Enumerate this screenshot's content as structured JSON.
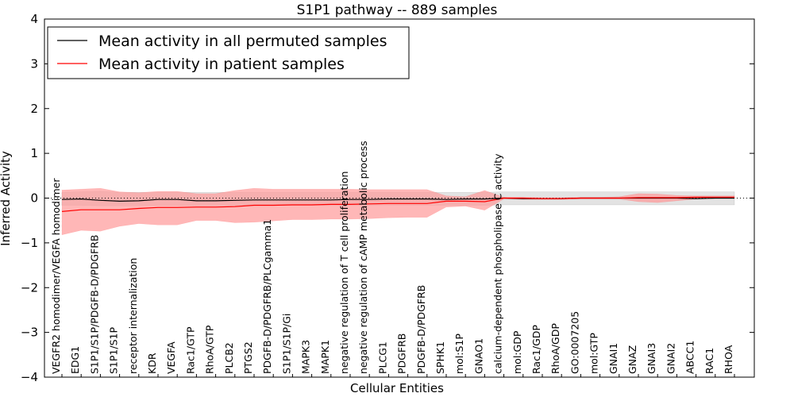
{
  "chart_data": {
    "type": "line",
    "title": "S1P1 pathway -- 889 samples",
    "xlabel": "Cellular Entities",
    "ylabel": "Inferred Activity",
    "ylim": [
      -4,
      4
    ],
    "yticks": [
      4,
      3,
      2,
      1,
      0,
      -1,
      -2,
      -3,
      -4
    ],
    "ytick_labels": [
      "4",
      "3",
      "2",
      "1",
      "0",
      "−1",
      "−2",
      "−3",
      "−4"
    ],
    "reference_line": 0,
    "grid": false,
    "legend_position": "top-left",
    "categories": [
      "VEGFR2 homodimer/VEGFA homodimer",
      "EDG1",
      "S1P1/S1P/PDGFB-D/PDGFRB",
      "S1P1/S1P",
      "receptor internalization",
      "KDR",
      "VEGFA",
      "Rac1/GTP",
      "RhoA/GTP",
      "PLCB2",
      "PTGS2",
      "PDGFB-D/PDGFRB/PLCgamma1",
      "S1P1/S1P/Gi",
      "MAPK3",
      "MAPK1",
      "negative regulation of T cell proliferation",
      "negative regulation of cAMP metabolic process",
      "PLCG1",
      "PDGFRB",
      "PDGFB-D/PDGFRB",
      "SPHK1",
      "mol:S1P",
      "GNAO1",
      "calcium-dependent phospholipase C activity",
      "mol:GDP",
      "Rac1/GDP",
      "RhoA/GDP",
      "GO:0007205",
      "mol:GTP",
      "GNAI1",
      "GNAZ",
      "GNAI3",
      "GNAI2",
      "ABCC1",
      "RAC1",
      "RHOA"
    ],
    "series": [
      {
        "name": "Mean activity in all permuted samples",
        "color": "#000000",
        "band_color": "#d9d9d9",
        "values": [
          -0.03,
          -0.02,
          -0.05,
          -0.07,
          -0.06,
          -0.03,
          -0.03,
          -0.06,
          -0.06,
          -0.05,
          -0.04,
          -0.04,
          -0.04,
          -0.04,
          -0.04,
          -0.03,
          -0.03,
          -0.02,
          -0.02,
          -0.02,
          -0.03,
          -0.02,
          -0.02,
          0.0,
          -0.01,
          -0.01,
          -0.01,
          0.0,
          0.0,
          0.0,
          0.0,
          0.0,
          0.0,
          -0.01,
          0.0,
          0.0
        ],
        "band_upper": [
          0.13,
          0.14,
          0.15,
          0.13,
          0.13,
          0.13,
          0.13,
          0.13,
          0.13,
          0.13,
          0.13,
          0.13,
          0.13,
          0.13,
          0.13,
          0.13,
          0.13,
          0.13,
          0.13,
          0.13,
          0.13,
          0.13,
          0.13,
          0.14,
          0.14,
          0.14,
          0.14,
          0.14,
          0.14,
          0.14,
          0.14,
          0.14,
          0.14,
          0.14,
          0.14,
          0.14
        ],
        "band_lower": [
          -0.16,
          -0.16,
          -0.17,
          -0.17,
          -0.17,
          -0.16,
          -0.16,
          -0.17,
          -0.17,
          -0.17,
          -0.16,
          -0.16,
          -0.16,
          -0.16,
          -0.16,
          -0.16,
          -0.16,
          -0.16,
          -0.16,
          -0.16,
          -0.16,
          -0.16,
          -0.16,
          -0.15,
          -0.15,
          -0.15,
          -0.15,
          -0.15,
          -0.15,
          -0.15,
          -0.15,
          -0.15,
          -0.15,
          -0.15,
          -0.15,
          -0.15
        ]
      },
      {
        "name": "Mean activity in patient samples",
        "color": "#ff0000",
        "band_color": "#ff9999",
        "values": [
          -0.3,
          -0.26,
          -0.26,
          -0.26,
          -0.23,
          -0.21,
          -0.21,
          -0.2,
          -0.2,
          -0.19,
          -0.16,
          -0.16,
          -0.15,
          -0.15,
          -0.14,
          -0.14,
          -0.13,
          -0.12,
          -0.12,
          -0.12,
          -0.07,
          -0.07,
          -0.08,
          0.0,
          0.0,
          -0.01,
          -0.01,
          0.0,
          0.0,
          0.0,
          0.01,
          0.01,
          0.01,
          0.02,
          0.02,
          0.02
        ],
        "band_upper": [
          0.18,
          0.2,
          0.22,
          0.14,
          0.12,
          0.15,
          0.15,
          0.1,
          0.1,
          0.17,
          0.22,
          0.2,
          0.2,
          0.2,
          0.2,
          0.2,
          0.19,
          0.19,
          0.19,
          0.19,
          0.05,
          0.03,
          0.17,
          0.02,
          0.02,
          0.01,
          0.01,
          0.02,
          0.02,
          0.03,
          0.1,
          0.09,
          0.06,
          0.05,
          0.05,
          0.05
        ],
        "band_lower": [
          -0.82,
          -0.72,
          -0.74,
          -0.63,
          -0.57,
          -0.6,
          -0.6,
          -0.5,
          -0.5,
          -0.55,
          -0.54,
          -0.51,
          -0.48,
          -0.48,
          -0.47,
          -0.47,
          -0.46,
          -0.44,
          -0.43,
          -0.43,
          -0.2,
          -0.18,
          -0.27,
          -0.02,
          -0.03,
          -0.03,
          -0.03,
          -0.02,
          -0.02,
          -0.02,
          -0.08,
          -0.1,
          -0.06,
          -0.02,
          -0.01,
          -0.01
        ]
      }
    ]
  }
}
